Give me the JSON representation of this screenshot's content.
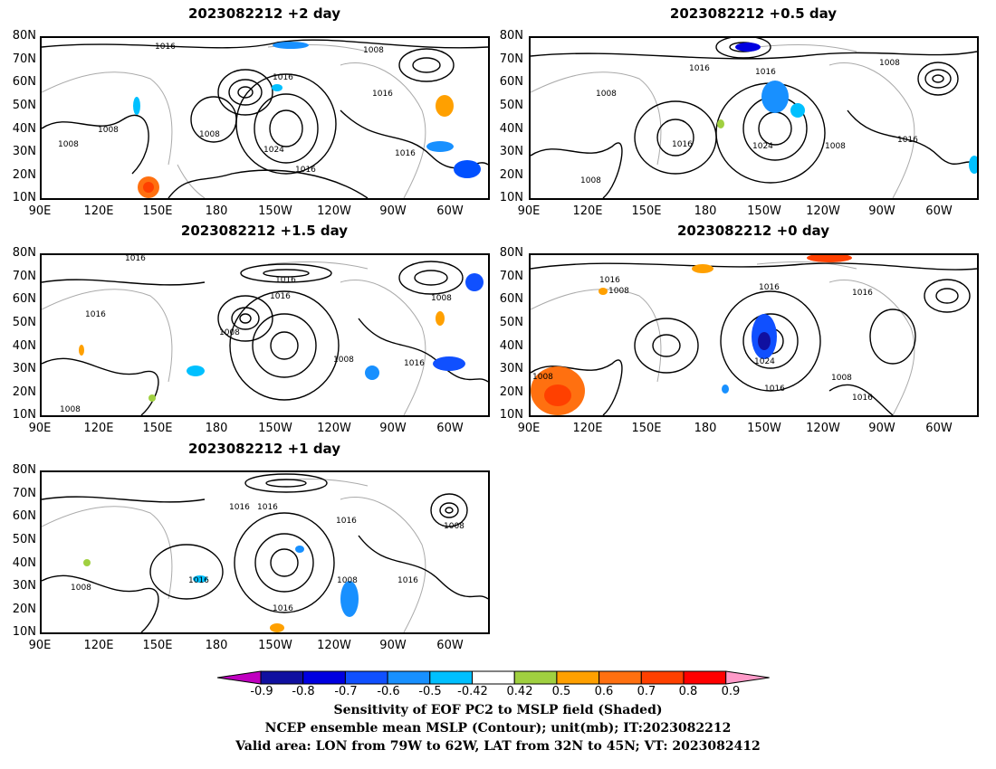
{
  "panels": [
    {
      "id": "p1",
      "title": "2023082212 +2 day"
    },
    {
      "id": "p2",
      "title": "2023082212 +0.5 day"
    },
    {
      "id": "p3",
      "title": "2023082212 +1.5 day"
    },
    {
      "id": "p4",
      "title": "2023082212 +0 day"
    },
    {
      "id": "p5",
      "title": "2023082212 +1 day"
    }
  ],
  "lat_ticks": [
    "80N",
    "70N",
    "60N",
    "50N",
    "40N",
    "30N",
    "20N",
    "10N"
  ],
  "lon_ticks": [
    "90E",
    "120E",
    "150E",
    "180",
    "150W",
    "120W",
    "90W",
    "60W"
  ],
  "contour_labels": {
    "p1": [
      "1016",
      "1008",
      "1016",
      "1016",
      "1008",
      "1008",
      "1008",
      "1024",
      "1016",
      "1016"
    ],
    "p2": [
      "1016",
      "1016",
      "1008",
      "1008",
      "1016",
      "1024",
      "1008",
      "1016",
      "1008"
    ],
    "p3": [
      "1016",
      "1016",
      "1016",
      "1008",
      "1016",
      "1008",
      "1008",
      "1016",
      "1008"
    ],
    "p4": [
      "1016",
      "1008",
      "1016",
      "1016",
      "1024",
      "1016",
      "1008",
      "1016",
      "1008"
    ],
    "p5": [
      "1016",
      "1016",
      "1016",
      "1008",
      "1016",
      "1008",
      "1016",
      "1008",
      "1016"
    ]
  },
  "colorbar": {
    "labels": [
      "-0.9",
      "-0.8",
      "-0.7",
      "-0.6",
      "-0.5",
      "-0.42",
      "0.42",
      "0.5",
      "0.6",
      "0.7",
      "0.8",
      "0.9"
    ],
    "colors": [
      "#c000c0",
      "#1010a0",
      "#0000e0",
      "#1050ff",
      "#1890ff",
      "#00c0ff",
      "#ffffff",
      "#a0d040",
      "#ffa000",
      "#ff7010",
      "#ff4000",
      "#ff0000",
      "#ff9ac8"
    ]
  },
  "caption": {
    "line1": "Sensitivity of EOF PC2 to MSLP field (Shaded)",
    "line2": "NCEP ensemble mean MSLP (Contour); unit(mb); IT:2023082212",
    "line3": "Valid area: LON from 79W to 62W, LAT from 32N to 45N; VT: 2023082412"
  }
}
